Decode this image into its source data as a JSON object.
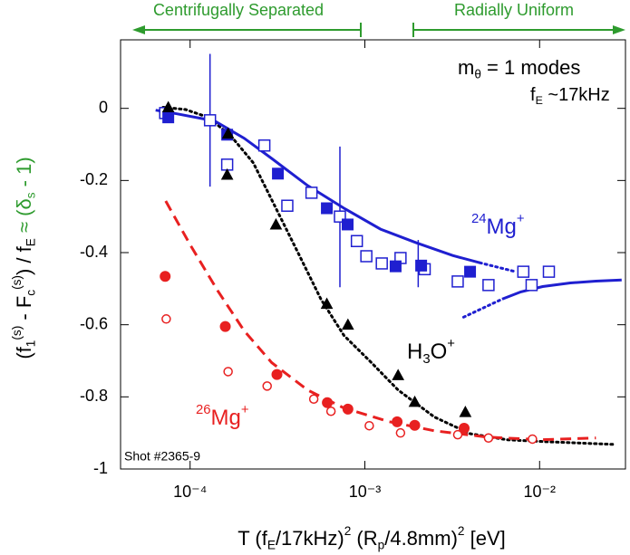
{
  "chart_data": {
    "type": "scatter",
    "xscale": "log",
    "xlim": [
      4e-05,
      0.031
    ],
    "ylim": [
      -1,
      0.19
    ],
    "xticks": [
      {
        "value": 0.0001,
        "label": "10⁻⁴"
      },
      {
        "value": 0.001,
        "label": "10⁻³"
      },
      {
        "value": 0.01,
        "label": "10⁻²"
      }
    ],
    "yticks": [
      0,
      -0.2,
      -0.4,
      -0.6,
      -0.8,
      -1
    ],
    "region_labels": [
      "Centrifugally Separated",
      "Radially Uniform"
    ],
    "y_label": [
      "(f",
      "1",
      "(s)",
      " - F",
      "c",
      "(s)",
      ") / f",
      "E",
      " ≈ (δ",
      "s",
      " - 1)"
    ],
    "x_label": [
      "T (f",
      "E",
      "/17kHz)",
      "2",
      " (R",
      "p",
      "/4.8mm)",
      "2",
      "   [eV]"
    ],
    "mode_label": [
      "m",
      "θ",
      " = 1 modes"
    ],
    "freq_label": [
      "f",
      "E",
      " ~17kHz"
    ],
    "mg24_label": [
      "24",
      "Mg",
      "+"
    ],
    "h3o_label": [
      "H",
      "3",
      "O",
      "+"
    ],
    "mg26_label": [
      "26",
      "Mg",
      "+"
    ],
    "shot_label": "Shot #2365-9",
    "series": [
      {
        "kind": "line",
        "dash": "dotted",
        "color": "#000000",
        "x": [
          7e-05,
          9.4e-05,
          0.000127,
          0.000171,
          0.00023,
          0.00031,
          0.000417,
          0.00056,
          0.00076,
          0.00109,
          0.00155,
          0.0025,
          0.004,
          0.0065,
          0.0104,
          0.019,
          0.027
        ],
        "values": [
          0.003,
          -0.003,
          -0.025,
          -0.076,
          -0.151,
          -0.277,
          -0.403,
          -0.529,
          -0.63,
          -0.705,
          -0.781,
          -0.856,
          -0.902,
          -0.919,
          -0.924,
          -0.929,
          -0.932
        ]
      },
      {
        "kind": "line",
        "dash": "dashed",
        "color": "#e82020",
        "x": [
          7.25e-05,
          0.0001,
          0.000143,
          0.000204,
          0.000293,
          0.00047,
          0.00076,
          0.00138,
          0.0025,
          0.0051,
          0.0104,
          0.021
        ],
        "values": [
          -0.257,
          -0.378,
          -0.504,
          -0.617,
          -0.705,
          -0.781,
          -0.831,
          -0.869,
          -0.894,
          -0.912,
          -0.919,
          -0.914
        ]
      },
      {
        "kind": "line",
        "dash": "solid",
        "color": "#1f1fd0",
        "x": [
          6.35e-05,
          8.4e-05,
          0.000138,
          0.000204,
          0.000293,
          0.00047,
          0.00076,
          0.00123,
          0.00198,
          0.00318,
          0.00455,
          0.0052,
          0.0061,
          0.0078,
          0.0104,
          0.015,
          0.021,
          0.0295
        ],
        "values": [
          -0.005,
          -0.015,
          -0.035,
          -0.083,
          -0.139,
          -0.214,
          -0.277,
          -0.335,
          -0.373,
          -0.408,
          -0.428,
          null,
          -0.529,
          -0.509,
          -0.494,
          -0.484,
          -0.479,
          -0.476
        ]
      },
      {
        "kind": "line",
        "dash": "dotted",
        "color": "#1f1fd0",
        "x": [
          0.00455,
          0.0073,
          0.005,
          0.00367,
          0.0061
        ],
        "values": [
          -0.428,
          -0.453,
          null,
          -0.579,
          -0.529
        ]
      },
      {
        "kind": "errorbar",
        "color": "#1f1fd0",
        "x": [
          0.00013,
          0.00072,
          0.00202
        ],
        "low": [
          -0.217,
          -0.496,
          -0.496
        ],
        "high": [
          0.151,
          -0.106,
          -0.365
        ]
      },
      {
        "kind": "points",
        "marker": "open-square",
        "color": "#1f1fd0",
        "x": [
          7.2e-05,
          0.00013,
          0.000163,
          0.000266,
          0.00036,
          0.000495,
          0.00072,
          0.0009,
          0.00102,
          0.00125,
          0.0016,
          0.0022,
          0.0034,
          0.0051,
          0.009,
          0.00807,
          0.0113
        ],
        "values": [
          -0.013,
          -0.033,
          -0.156,
          -0.103,
          -0.27,
          -0.234,
          -0.3,
          -0.368,
          -0.41,
          -0.43,
          -0.415,
          -0.446,
          -0.48,
          -0.49,
          -0.49,
          -0.453,
          -0.453
        ]
      },
      {
        "kind": "points",
        "marker": "square",
        "color": "#1f1fd0",
        "x": [
          7.5e-05,
          0.000163,
          0.000318,
          0.000606,
          0.000797,
          0.0015,
          0.0021,
          0.004
        ],
        "values": [
          -0.025,
          -0.073,
          -0.181,
          -0.277,
          -0.322,
          -0.438,
          -0.436,
          -0.453
        ]
      },
      {
        "kind": "points",
        "marker": "triangle",
        "color": "#000000",
        "x": [
          7.5e-05,
          0.000165,
          0.000163,
          0.00031,
          0.000606,
          0.0008,
          0.00155,
          0.00193,
          0.00376
        ],
        "values": [
          0.003,
          -0.07,
          -0.184,
          -0.322,
          -0.542,
          -0.6,
          -0.74,
          -0.814,
          -0.842
        ]
      },
      {
        "kind": "points",
        "marker": "circle",
        "color": "#e82020",
        "x": [
          7.2e-05,
          0.000159,
          0.000314,
          0.00061,
          0.0008,
          0.00153,
          0.00193,
          0.0037
        ],
        "values": [
          -0.466,
          -0.605,
          -0.738,
          -0.816,
          -0.834,
          -0.869,
          -0.879,
          -0.887
        ]
      },
      {
        "kind": "points",
        "marker": "open-circle",
        "color": "#e82020",
        "x": [
          7.3e-05,
          0.000165,
          0.000276,
          0.00051,
          0.00064,
          0.00106,
          0.0016,
          0.0034,
          0.0051,
          0.0091
        ],
        "values": [
          -0.584,
          -0.73,
          -0.77,
          -0.806,
          -0.84,
          -0.88,
          -0.9,
          -0.905,
          -0.914,
          -0.917
        ]
      }
    ]
  }
}
